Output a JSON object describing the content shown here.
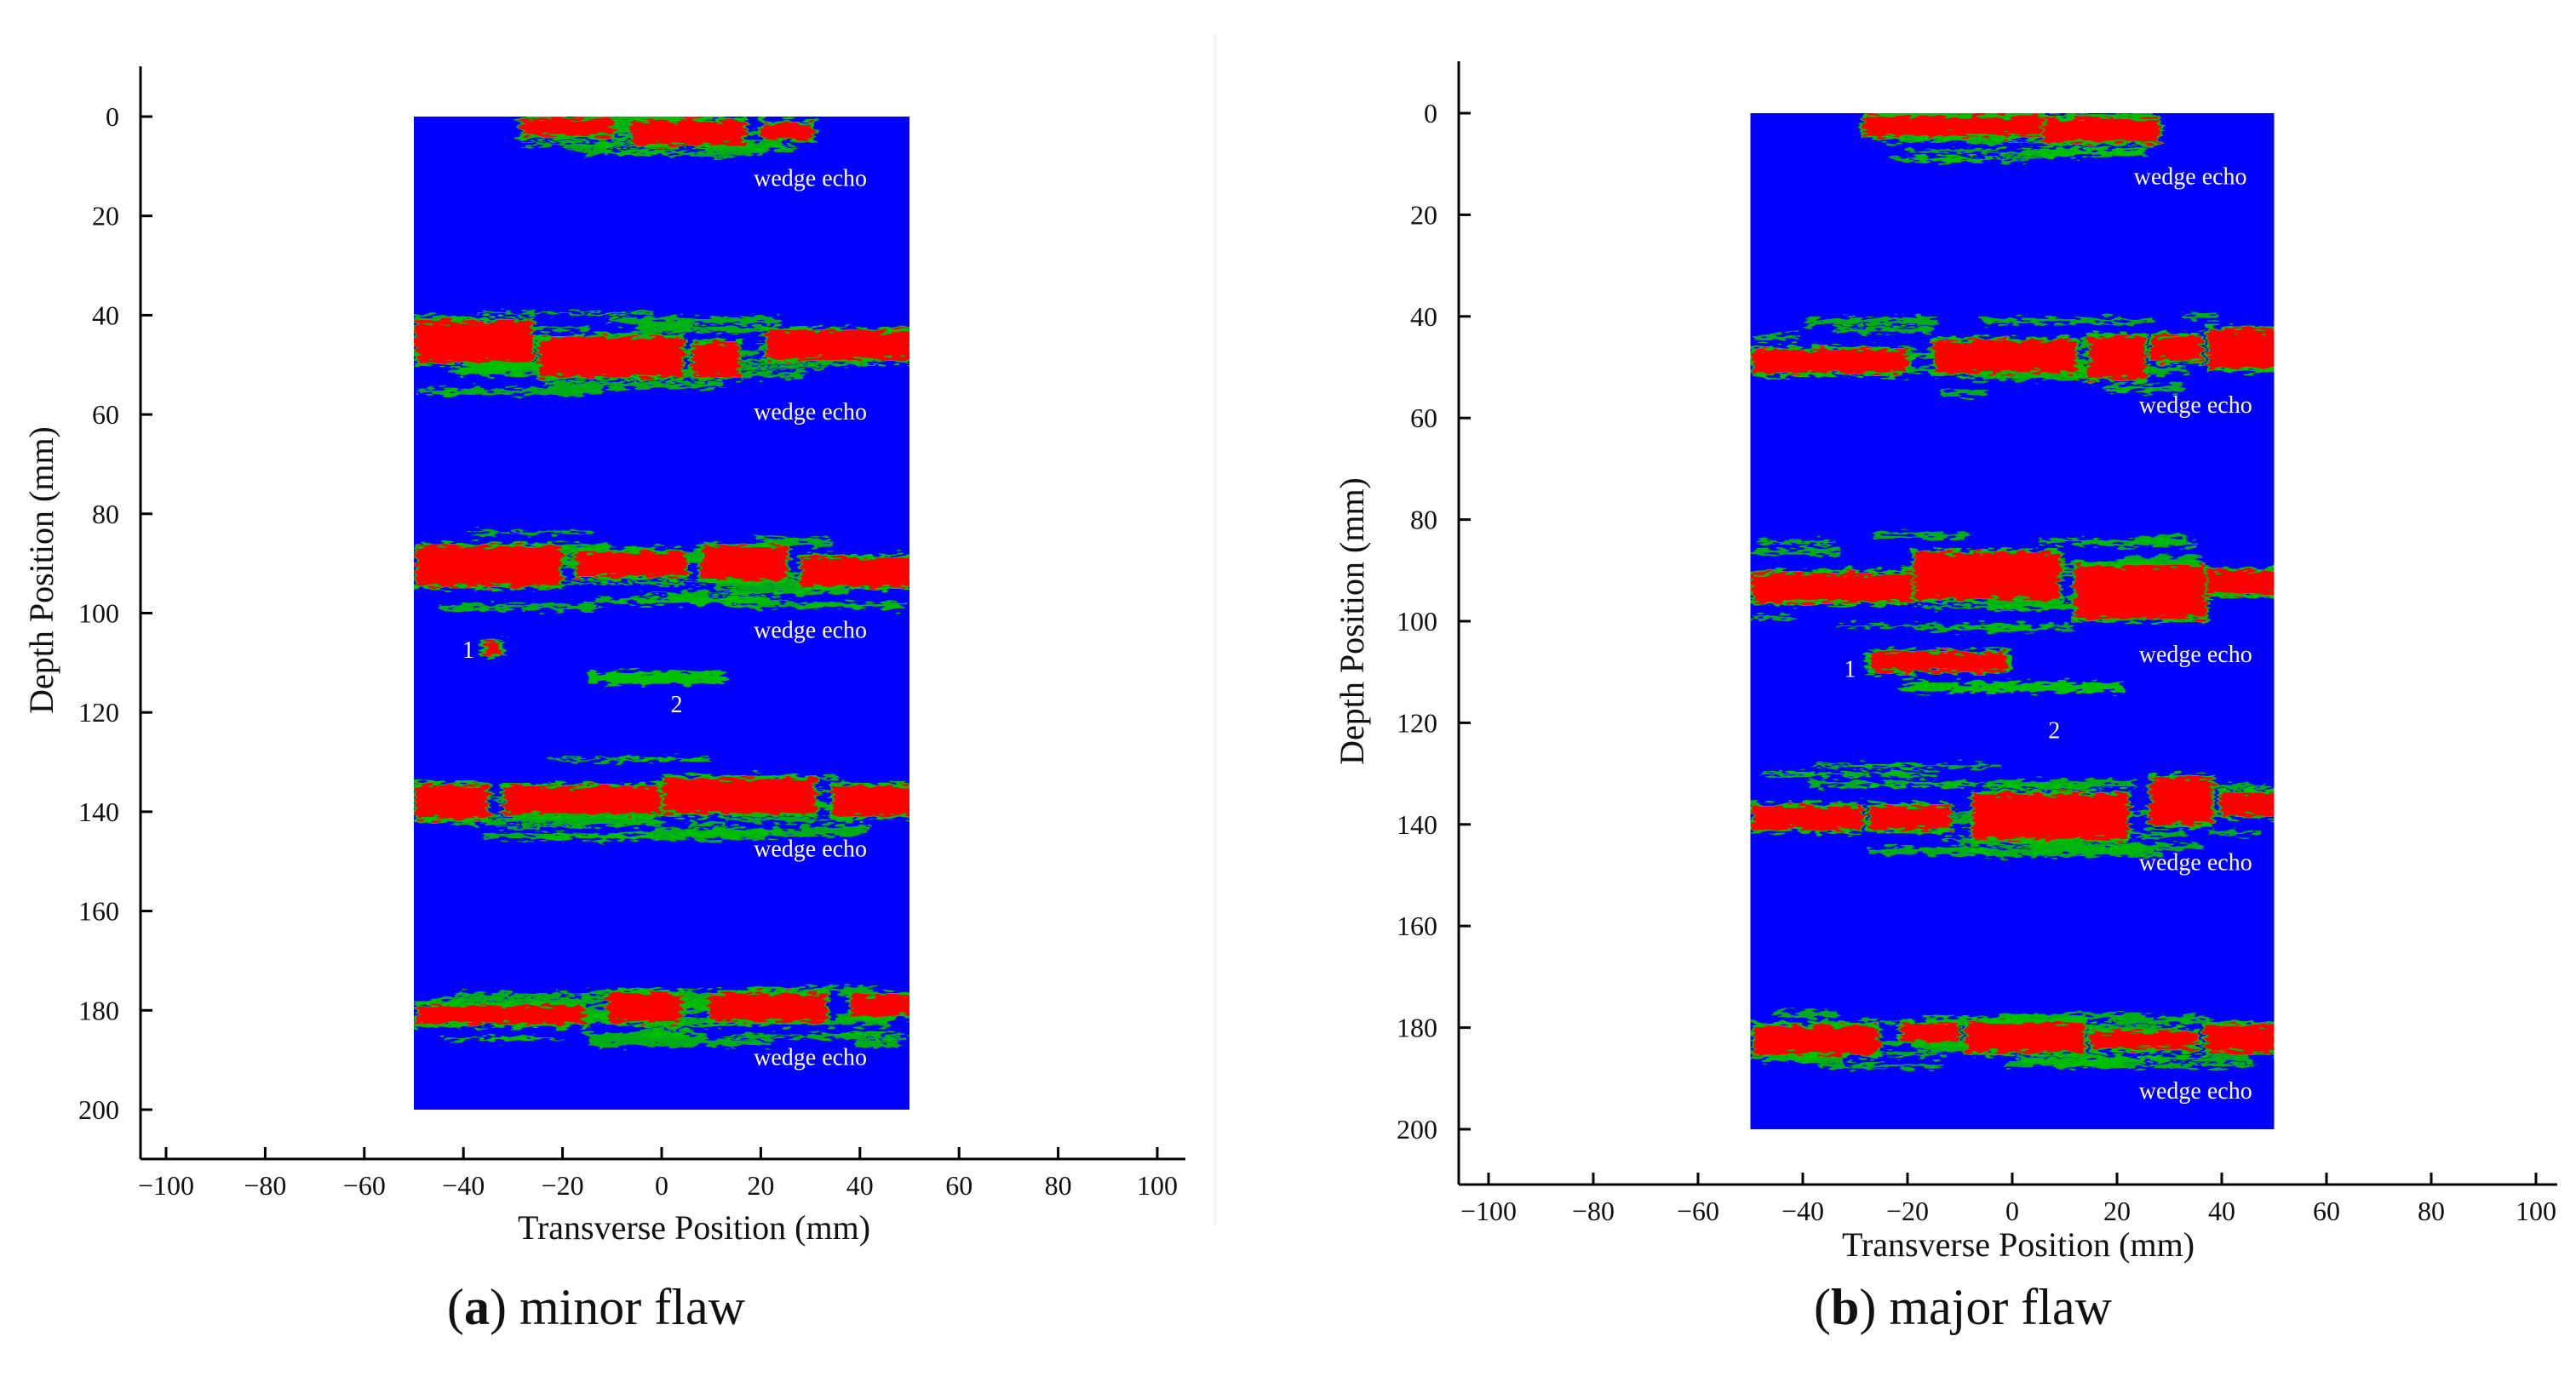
{
  "chart_data": [
    {
      "type": "heatmap",
      "caption_letter": "a",
      "caption_text": "minor flaw",
      "xlabel": "Transverse Position (mm)",
      "ylabel": "Depth Position (mm)",
      "xlim": [
        -105,
        105
      ],
      "ylim": [
        -10,
        210
      ],
      "y_inverted": true,
      "x_ticks": [
        -100,
        -80,
        -60,
        -40,
        -20,
        0,
        20,
        40,
        60,
        80,
        100
      ],
      "y_ticks": [
        0,
        20,
        40,
        60,
        80,
        100,
        120,
        140,
        160,
        180,
        200
      ],
      "image_extent": {
        "x": [
          -50,
          50
        ],
        "y": [
          0,
          200
        ]
      },
      "colors": {
        "background": "#0000ff",
        "mid": "#00c000",
        "high": "#ff0000"
      },
      "echo_bands": [
        {
          "depth": 2,
          "x": [
            -30,
            30
          ],
          "thickness": 6
        },
        {
          "depth": 47,
          "x": [
            -50,
            50
          ],
          "thickness": 8
        },
        {
          "depth": 91,
          "x": [
            -50,
            50
          ],
          "thickness": 8
        },
        {
          "depth": 137,
          "x": [
            -50,
            50
          ],
          "thickness": 8
        },
        {
          "depth": 180,
          "x": [
            -50,
            50
          ],
          "thickness": 6
        }
      ],
      "annotations": [
        {
          "text": "wedge echo",
          "x": 30,
          "y": 14
        },
        {
          "text": "wedge echo",
          "x": 30,
          "y": 61
        },
        {
          "text": "wedge echo",
          "x": 30,
          "y": 105
        },
        {
          "text": "wedge echo",
          "x": 30,
          "y": 149
        },
        {
          "text": "wedge echo",
          "x": 30,
          "y": 191
        },
        {
          "text": "1",
          "x": -39,
          "y": 109
        },
        {
          "text": "2",
          "x": 3,
          "y": 120
        }
      ],
      "flaws": [
        {
          "label": "1",
          "x": -34,
          "y": 107
        },
        {
          "label": "2",
          "x": -1,
          "y": 113
        }
      ]
    },
    {
      "type": "heatmap",
      "caption_letter": "b",
      "caption_text": "major flaw",
      "xlabel": "Transverse Position (mm)",
      "ylabel": "Depth Position (mm)",
      "xlim": [
        -105,
        105
      ],
      "ylim": [
        -10,
        210
      ],
      "y_inverted": true,
      "x_ticks": [
        -100,
        -80,
        -60,
        -40,
        -20,
        0,
        20,
        40,
        60,
        80,
        100
      ],
      "y_ticks": [
        0,
        20,
        40,
        60,
        80,
        100,
        120,
        140,
        160,
        180,
        200
      ],
      "image_extent": {
        "x": [
          -50,
          50
        ],
        "y": [
          0,
          200
        ]
      },
      "colors": {
        "background": "#0000ff",
        "mid": "#00c000",
        "high": "#ff0000"
      },
      "echo_bands": [
        {
          "depth": 3,
          "x": [
            -30,
            30
          ],
          "thickness": 6
        },
        {
          "depth": 47,
          "x": [
            -50,
            50
          ],
          "thickness": 8
        },
        {
          "depth": 92,
          "x": [
            -50,
            50
          ],
          "thickness": 10
        },
        {
          "depth": 137,
          "x": [
            -50,
            50
          ],
          "thickness": 9
        },
        {
          "depth": 182,
          "x": [
            -50,
            50
          ],
          "thickness": 6
        }
      ],
      "annotations": [
        {
          "text": "wedge echo",
          "x": 34,
          "y": 14
        },
        {
          "text": "wedge echo",
          "x": 35,
          "y": 59
        },
        {
          "text": "wedge echo",
          "x": 35,
          "y": 108
        },
        {
          "text": "wedge echo",
          "x": 35,
          "y": 149
        },
        {
          "text": "wedge echo",
          "x": 35,
          "y": 194
        },
        {
          "text": "1",
          "x": -31,
          "y": 111
        },
        {
          "text": "2",
          "x": 8,
          "y": 123
        }
      ],
      "flaws": [
        {
          "label": "1",
          "x": -14,
          "y": 108
        },
        {
          "label": "2",
          "x": 0,
          "y": 113
        }
      ]
    }
  ]
}
